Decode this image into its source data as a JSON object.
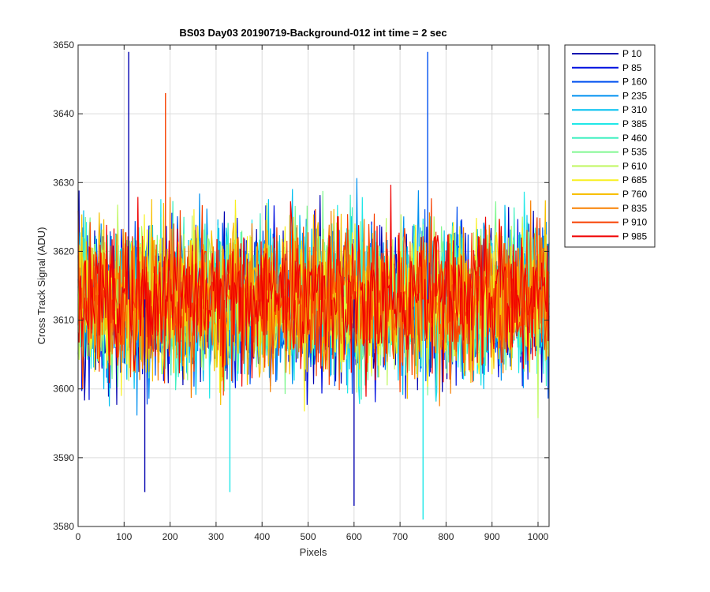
{
  "chart_data": {
    "type": "line",
    "title": "BS03 Day03 20190719-Background-012 int time = 2 sec",
    "xlabel": "Pixels",
    "ylabel": "Cross Track Signal (ADU)",
    "xlim": [
      0,
      1024
    ],
    "ylim": [
      3580,
      3650
    ],
    "xticks": [
      0,
      100,
      200,
      300,
      400,
      500,
      600,
      700,
      800,
      900,
      1000
    ],
    "yticks": [
      3580,
      3590,
      3600,
      3610,
      3620,
      3630,
      3640,
      3650
    ],
    "grid": true,
    "legend_position": "outside-top-right",
    "signal_mean": 3613,
    "signal_spread": 6,
    "series": [
      {
        "name": "P 10",
        "color": "#0000b0"
      },
      {
        "name": "P 85",
        "color": "#0010e0"
      },
      {
        "name": "P 160",
        "color": "#0050f0"
      },
      {
        "name": "P 235",
        "color": "#0090f0"
      },
      {
        "name": "P 310",
        "color": "#00c0f0"
      },
      {
        "name": "P 385",
        "color": "#20e8e8"
      },
      {
        "name": "P 460",
        "color": "#40f0c0"
      },
      {
        "name": "P 535",
        "color": "#80f890"
      },
      {
        "name": "P 610",
        "color": "#c0f860"
      },
      {
        "name": "P 685",
        "color": "#f8f020"
      },
      {
        "name": "P 760",
        "color": "#f8c000"
      },
      {
        "name": "P 835",
        "color": "#f88000"
      },
      {
        "name": "P 910",
        "color": "#f84000"
      },
      {
        "name": "P 985",
        "color": "#f00000"
      }
    ],
    "notable_points": [
      {
        "series": "P 10",
        "x": 110,
        "y": 3649
      },
      {
        "series": "P 160",
        "x": 760,
        "y": 3649
      },
      {
        "series": "P 910",
        "x": 190,
        "y": 3643
      },
      {
        "series": "P 10",
        "x": 600,
        "y": 3583
      },
      {
        "series": "P 385",
        "x": 750,
        "y": 3581
      },
      {
        "series": "P 10",
        "x": 145,
        "y": 3585
      },
      {
        "series": "P 385",
        "x": 330,
        "y": 3585
      }
    ]
  }
}
